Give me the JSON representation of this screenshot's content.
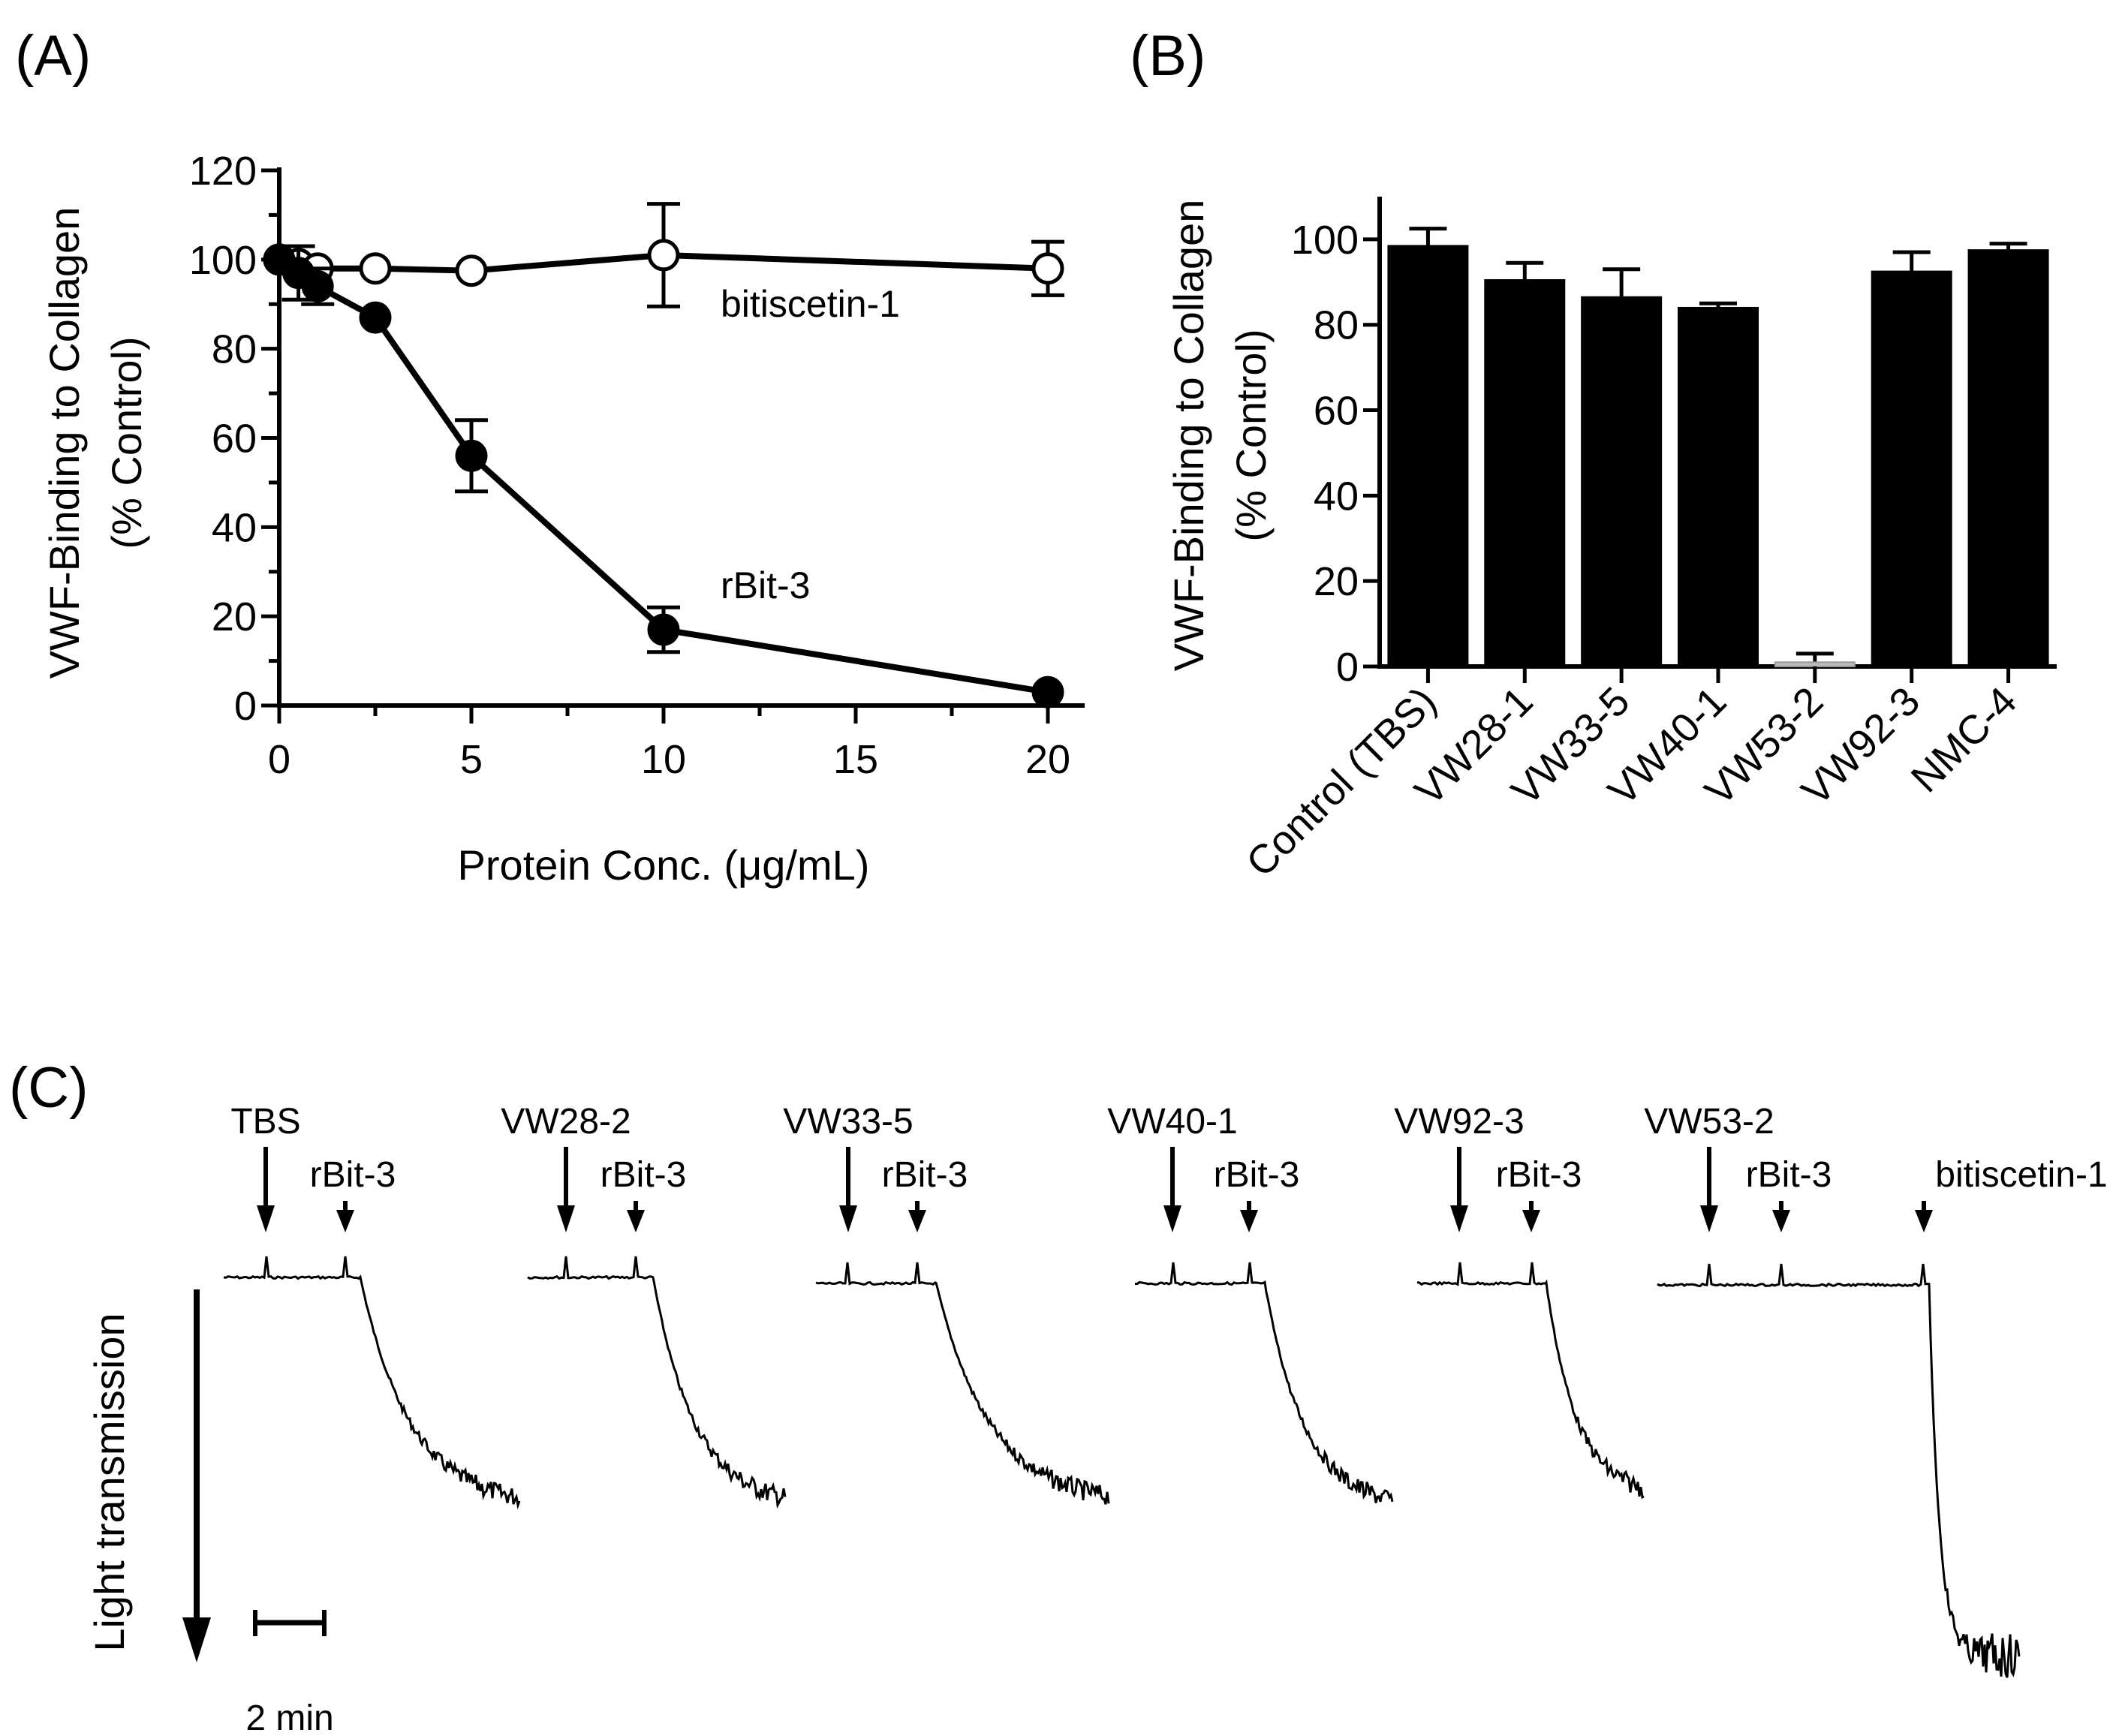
{
  "chart_data": [
    {
      "panel": "(A)",
      "type": "line",
      "xlabel": "Protein Conc. (μg/mL)",
      "ylabel": [
        "VWF-Binding to Collagen",
        "(% Control)"
      ],
      "xlim": [
        0,
        20
      ],
      "ylim": [
        0,
        120
      ],
      "xticks": [
        "0",
        "5",
        "10",
        "15",
        "20"
      ],
      "yticks": [
        "0",
        "20",
        "40",
        "60",
        "80",
        "100",
        "120"
      ],
      "series": [
        {
          "name": "bitiscetin-1",
          "marker": "open-circle",
          "x": [
            0,
            0.5,
            1,
            2.5,
            5,
            10,
            20
          ],
          "values": [
            100,
            99,
            98,
            98,
            97.5,
            101,
            98
          ],
          "errors": [
            0,
            0,
            0,
            0,
            0,
            11.5,
            6
          ]
        },
        {
          "name": "rBit-3",
          "marker": "filled-circle",
          "x": [
            0,
            0.5,
            1,
            2.5,
            5,
            10,
            20
          ],
          "values": [
            100,
            97,
            94,
            87,
            56,
            17,
            3
          ],
          "errors": [
            0,
            6,
            4,
            0,
            8,
            5,
            0
          ]
        }
      ]
    },
    {
      "panel": "(B)",
      "type": "bar",
      "ylabel": [
        "VWF-Binding to Collagen",
        "(% Control)"
      ],
      "ylim": [
        0,
        110
      ],
      "yticks": [
        "0",
        "20",
        "40",
        "60",
        "80",
        "100"
      ],
      "categories": [
        "Control (TBS)",
        "VW28-1",
        "VW33-5",
        "VW40-1",
        "VW53-2",
        "VW92-3",
        "NMC-4"
      ],
      "values": [
        98.5,
        90.5,
        86.5,
        84,
        1,
        92.5,
        97.5
      ],
      "errors": [
        4,
        4,
        6.5,
        1,
        2,
        4.5,
        1.5
      ],
      "bar_colors": [
        "#000000",
        "#000000",
        "#000000",
        "#000000",
        "#bbbbbb",
        "#000000",
        "#000000"
      ]
    },
    {
      "panel": "(C)",
      "type": "line",
      "y_axis_label": "Light transmission",
      "scale_bar_label": "2 min",
      "traces": [
        {
          "first_label": "TBS",
          "second_label": "rBit-3",
          "third_label": "",
          "final_drop_fraction": 0.57
        },
        {
          "first_label": "VW28-2",
          "second_label": "rBit-3",
          "third_label": "",
          "final_drop_fraction": 0.57
        },
        {
          "first_label": "VW33-5",
          "second_label": "rBit-3",
          "third_label": "",
          "final_drop_fraction": 0.55
        },
        {
          "first_label": "VW40-1",
          "second_label": "rBit-3",
          "third_label": "",
          "final_drop_fraction": 0.56
        },
        {
          "first_label": "VW92-3",
          "second_label": "rBit-3",
          "third_label": "",
          "final_drop_fraction": 0.53
        },
        {
          "first_label": "VW53-2",
          "second_label": "rBit-3",
          "third_label": "bitiscetin-1",
          "final_drop_fraction": 0.96
        }
      ]
    }
  ]
}
